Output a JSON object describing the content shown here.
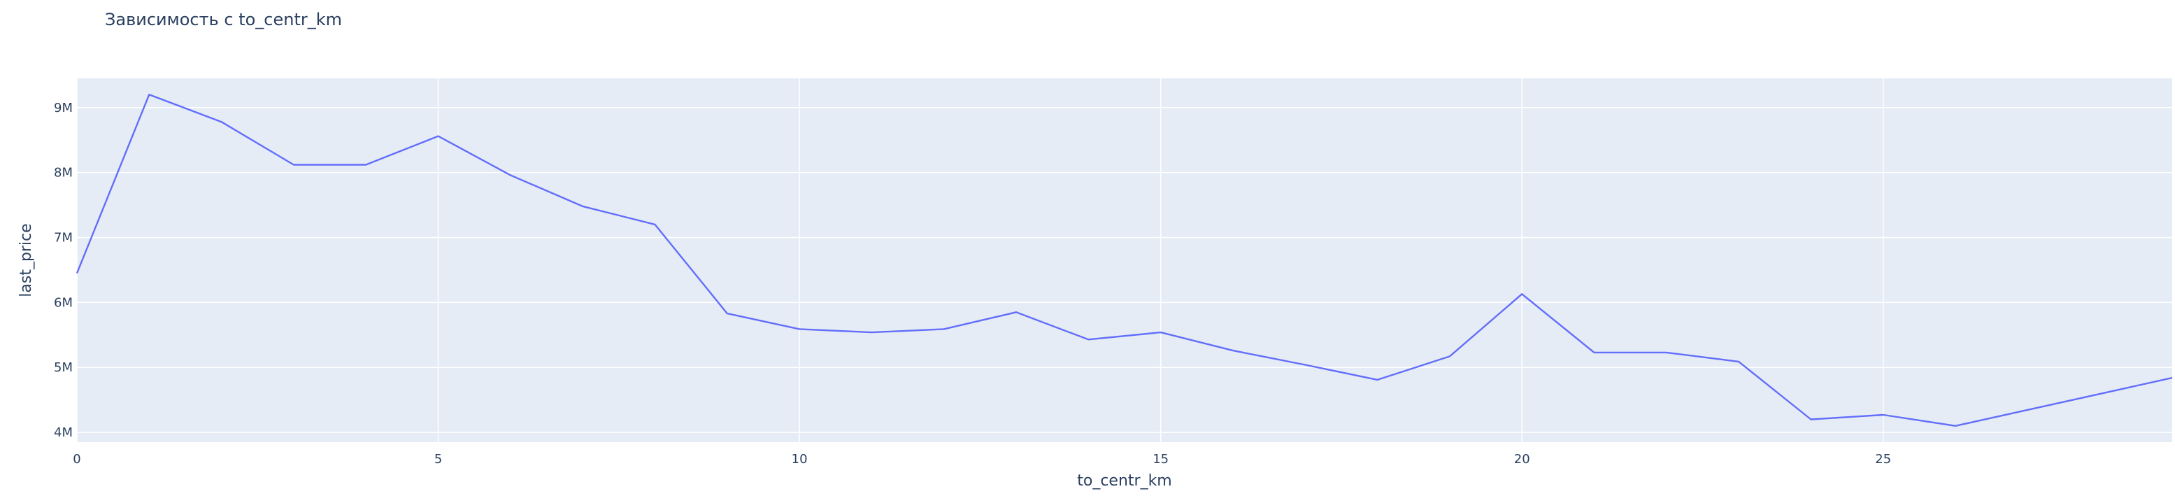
{
  "chart_data": {
    "type": "line",
    "title": "Зависимость с to_centr_km",
    "xlabel": "to_centr_km",
    "ylabel": "last_price",
    "xlim": [
      0,
      29
    ],
    "ylim": [
      3850000,
      9450000
    ],
    "x_ticks": [
      0,
      5,
      10,
      15,
      20,
      25
    ],
    "x_tick_labels": [
      "0",
      "5",
      "10",
      "15",
      "20",
      "25"
    ],
    "y_ticks": [
      4000000,
      5000000,
      6000000,
      7000000,
      8000000,
      9000000
    ],
    "y_tick_labels": [
      "4M",
      "5M",
      "6M",
      "7M",
      "8M",
      "9M"
    ],
    "grid": true,
    "line_color": "#636efa",
    "plot_bg": "#e5ecf6",
    "x": [
      0,
      1,
      2,
      3,
      4,
      5,
      6,
      7,
      8,
      9,
      10,
      11,
      12,
      13,
      14,
      15,
      16,
      17,
      18,
      19,
      20,
      21,
      22,
      23,
      24,
      25,
      26,
      29
    ],
    "values": [
      6450000,
      9200000,
      8780000,
      8120000,
      8120000,
      8560000,
      7960000,
      7480000,
      7200000,
      5830000,
      5590000,
      5540000,
      5590000,
      5850000,
      5430000,
      5540000,
      5260000,
      5040000,
      4810000,
      5170000,
      6130000,
      5230000,
      5230000,
      5090000,
      4200000,
      4270000,
      4100000,
      4840000
    ]
  }
}
